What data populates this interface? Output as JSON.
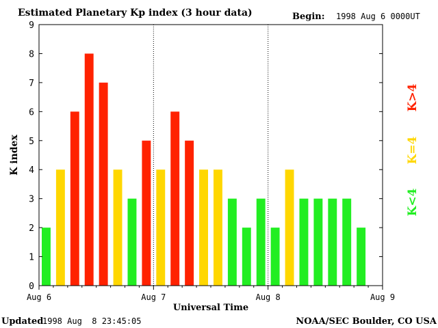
{
  "chart_data": {
    "type": "bar",
    "title": "Estimated Planetary Kp index (3 hour data)",
    "begin_label": "Begin:",
    "begin_value": "1998 Aug 6 0000UT",
    "xlabel": "Universal Time",
    "ylabel": "K index",
    "ylim": [
      0,
      9
    ],
    "yticks": [
      "0",
      "1",
      "2",
      "3",
      "4",
      "5",
      "6",
      "7",
      "8",
      "9"
    ],
    "xticks": [
      "Aug 6",
      "Aug 7",
      "Aug 8",
      "Aug 9"
    ],
    "values": [
      2,
      4,
      6,
      8,
      7,
      4,
      3,
      5,
      4,
      6,
      5,
      4,
      4,
      3,
      2,
      3,
      2,
      4,
      3,
      3,
      3,
      3,
      2
    ],
    "colors": {
      "low": "#22ee22",
      "mid": "#ffd700",
      "high": "#ff2200"
    },
    "legend": [
      {
        "label": "K<4",
        "color": "#22ee22"
      },
      {
        "label": "K=4",
        "color": "#ffd700"
      },
      {
        "label": "K>4",
        "color": "#ff2200"
      }
    ],
    "footer_left_label": "Updated",
    "footer_left_value": "1998 Aug  8 23:45:05",
    "footer_right": "NOAA/SEC Boulder, CO USA"
  }
}
